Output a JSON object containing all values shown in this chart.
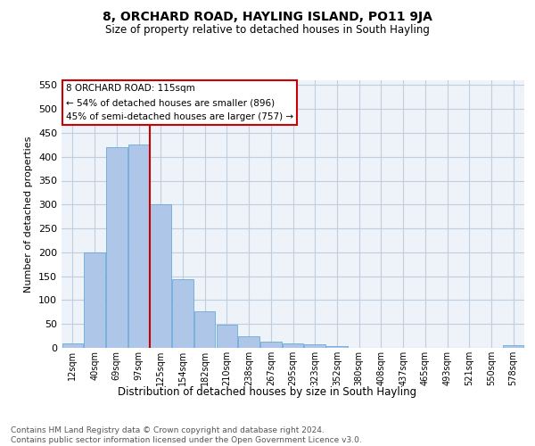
{
  "title": "8, ORCHARD ROAD, HAYLING ISLAND, PO11 9JA",
  "subtitle": "Size of property relative to detached houses in South Hayling",
  "xlabel": "Distribution of detached houses by size in South Hayling",
  "ylabel": "Number of detached properties",
  "bar_color": "#aec6e8",
  "bar_edge_color": "#5a9fd4",
  "background_color": "#eef2f9",
  "grid_color": "#c0cfe0",
  "categories": [
    "12sqm",
    "40sqm",
    "69sqm",
    "97sqm",
    "125sqm",
    "154sqm",
    "182sqm",
    "210sqm",
    "238sqm",
    "267sqm",
    "295sqm",
    "323sqm",
    "352sqm",
    "380sqm",
    "408sqm",
    "437sqm",
    "465sqm",
    "493sqm",
    "521sqm",
    "550sqm",
    "578sqm"
  ],
  "values": [
    10,
    200,
    420,
    425,
    300,
    143,
    77,
    48,
    25,
    13,
    10,
    8,
    3,
    0,
    0,
    0,
    0,
    0,
    0,
    0,
    5
  ],
  "ylim": [
    0,
    560
  ],
  "yticks": [
    0,
    50,
    100,
    150,
    200,
    250,
    300,
    350,
    400,
    450,
    500,
    550
  ],
  "vline_index": 4,
  "vline_color": "#cc0000",
  "annotation_text": "8 ORCHARD ROAD: 115sqm\n← 54% of detached houses are smaller (896)\n45% of semi-detached houses are larger (757) →",
  "annotation_box_color": "#ffffff",
  "annotation_box_edge_color": "#cc0000",
  "footer_line1": "Contains HM Land Registry data © Crown copyright and database right 2024.",
  "footer_line2": "Contains public sector information licensed under the Open Government Licence v3.0."
}
